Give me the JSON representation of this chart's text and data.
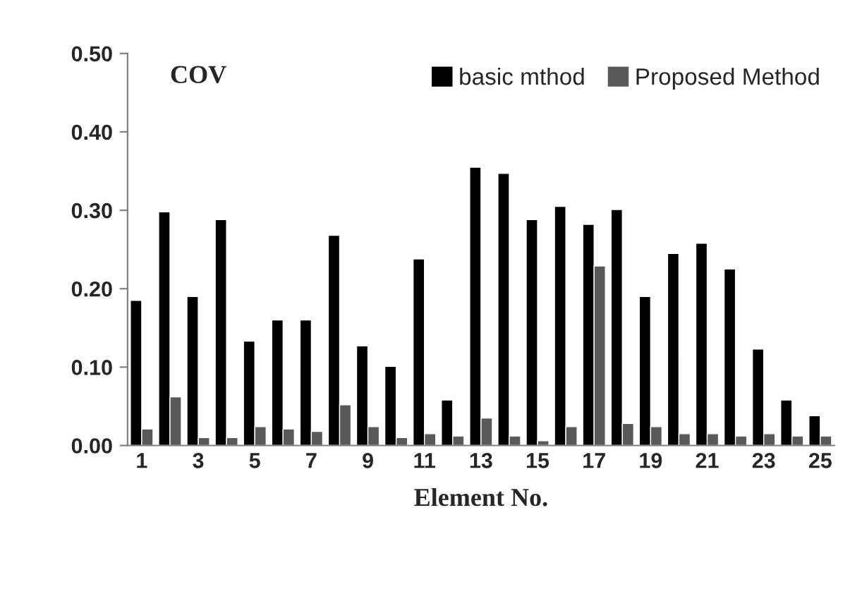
{
  "chart_data": {
    "type": "bar",
    "title": "COV",
    "xlabel": "Element No.",
    "categories": [
      "1",
      null,
      "3",
      null,
      "5",
      null,
      "7",
      null,
      "9",
      null,
      "11",
      null,
      "13",
      null,
      "15",
      null,
      "17",
      null,
      "19",
      null,
      "21",
      null,
      "23",
      null,
      "25"
    ],
    "series": [
      {
        "name": "basic mthod",
        "color": "#000000",
        "values": [
          0.185,
          0.298,
          0.19,
          0.288,
          0.133,
          0.16,
          0.16,
          0.268,
          0.127,
          0.101,
          0.238,
          0.058,
          0.355,
          0.347,
          0.288,
          0.305,
          0.282,
          0.301,
          0.19,
          0.245,
          0.258,
          0.225,
          0.123,
          0.058,
          0.038
        ]
      },
      {
        "name": "Proposed Method",
        "color": "#595959",
        "values": [
          0.021,
          0.062,
          0.01,
          0.01,
          0.024,
          0.021,
          0.018,
          0.052,
          0.024,
          0.01,
          0.015,
          0.012,
          0.035,
          0.012,
          0.006,
          0.024,
          0.229,
          0.028,
          0.024,
          0.015,
          0.015,
          0.012,
          0.015,
          0.012,
          0.012
        ]
      }
    ],
    "ylim": [
      0,
      0.5
    ],
    "yticks": [
      {
        "value": 0,
        "label": "0.00"
      },
      {
        "value": 0.1,
        "label": "0.10"
      },
      {
        "value": 0.2,
        "label": "0.20"
      },
      {
        "value": 0.3,
        "label": "0.30"
      },
      {
        "value": 0.4,
        "label": "0.40"
      },
      {
        "value": 0.5,
        "label": "0.50"
      }
    ],
    "grid": false,
    "legend": "top right"
  }
}
